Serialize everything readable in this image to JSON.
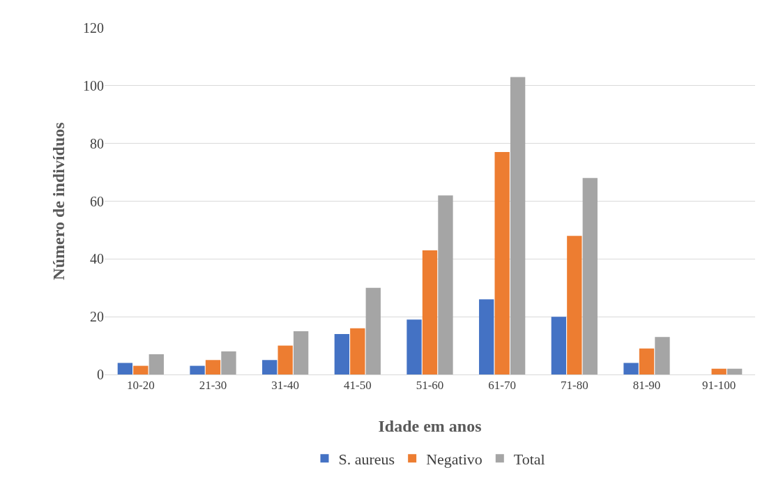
{
  "chart_data": {
    "type": "bar",
    "xlabel": "Idade em anos",
    "ylabel": "Número de indivíduos",
    "categories": [
      "10-20",
      "21-30",
      "31-40",
      "41-50",
      "51-60",
      "61-70",
      "71-80",
      "81-90",
      "91-100"
    ],
    "series": [
      {
        "name": "S. aureus",
        "color": "#4472c4",
        "values": [
          4,
          3,
          5,
          14,
          19,
          26,
          20,
          4,
          0
        ]
      },
      {
        "name": "Negativo",
        "color": "#ed7d31",
        "values": [
          3,
          5,
          10,
          16,
          43,
          77,
          48,
          9,
          2
        ]
      },
      {
        "name": "Total",
        "color": "#a5a5a5",
        "values": [
          7,
          8,
          15,
          30,
          62,
          103,
          68,
          13,
          2
        ]
      }
    ],
    "ylim": [
      0,
      120
    ],
    "yticks": [
      0,
      20,
      40,
      60,
      80,
      100,
      120
    ],
    "grid": "y",
    "legend": "bottom"
  }
}
